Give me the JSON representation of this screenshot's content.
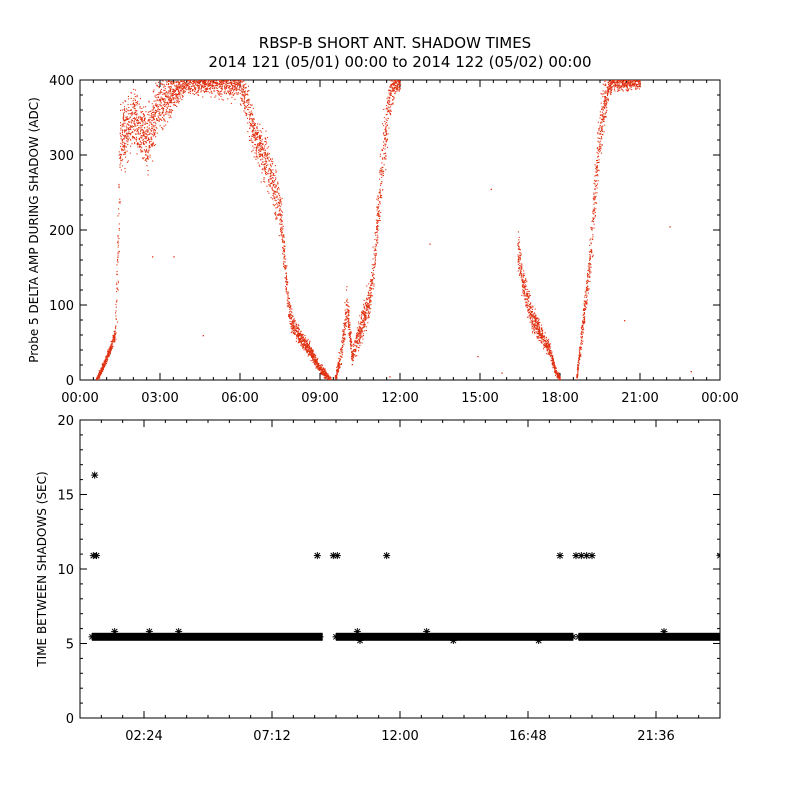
{
  "title_line1": "RBSP-B SHORT ANT. SHADOW TIMES",
  "title_line2": "2014 121 (05/01) 00:00 to 2014 122 (05/02) 00:00",
  "colors": {
    "top_series": "#e03010",
    "bottom_series": "#000000"
  },
  "chart_data": [
    {
      "type": "scatter",
      "ylabel": "Probe 5 DELTA AMP DURING SHADOW (ADC)",
      "xlabel": "",
      "xlim": [
        0,
        24
      ],
      "ylim": [
        0,
        400
      ],
      "x_unit": "hours",
      "x_ticks": [
        0,
        3,
        6,
        9,
        12,
        15,
        18,
        21,
        24
      ],
      "x_tick_labels": [
        "00:00",
        "03:00",
        "06:00",
        "09:00",
        "12:00",
        "15:00",
        "18:00",
        "21:00",
        "00:00"
      ],
      "y_ticks": [
        0,
        100,
        200,
        300,
        400
      ],
      "y_tick_labels": [
        "0",
        "100",
        "200",
        "300",
        "400"
      ],
      "grid": false,
      "band_series": {
        "x": [
          0.6,
          1.0,
          1.3,
          1.4,
          1.5,
          2.0,
          2.5,
          3.0,
          4.0,
          5.0,
          6.0,
          6.3,
          6.6,
          7.0,
          7.5,
          7.8,
          7.9,
          8.2,
          8.6,
          9.0,
          9.4
        ],
        "y": [
          0,
          30,
          60,
          150,
          320,
          350,
          320,
          370,
          400,
          400,
          400,
          360,
          320,
          290,
          230,
          100,
          80,
          60,
          40,
          15,
          0
        ],
        "spread": [
          3,
          5,
          8,
          60,
          40,
          30,
          35,
          30,
          15,
          15,
          20,
          25,
          25,
          25,
          30,
          15,
          12,
          8,
          8,
          6,
          3
        ]
      },
      "band_series_2": {
        "x": [
          9.55,
          9.8,
          10.0,
          10.2,
          10.5,
          10.8,
          11.0,
          11.3,
          11.6,
          11.8,
          12.0
        ],
        "y": [
          0,
          40,
          100,
          30,
          70,
          100,
          150,
          280,
          380,
          400,
          400
        ],
        "spread": [
          5,
          12,
          20,
          10,
          15,
          20,
          25,
          40,
          25,
          15,
          10
        ]
      },
      "band_series_3": {
        "x": [
          16.4,
          16.6,
          16.8,
          17.0,
          17.3,
          17.6,
          17.8,
          18.0
        ],
        "y": [
          180,
          130,
          100,
          80,
          60,
          40,
          15,
          0
        ],
        "spread": [
          25,
          20,
          15,
          12,
          10,
          8,
          6,
          3
        ]
      },
      "band_series_4": {
        "x": [
          18.6,
          18.8,
          19.0,
          19.2,
          19.4,
          19.6,
          19.8,
          20.0,
          20.5,
          21.0
        ],
        "y": [
          0,
          60,
          120,
          200,
          300,
          360,
          390,
          400,
          400,
          400
        ],
        "spread": [
          5,
          15,
          20,
          30,
          35,
          25,
          15,
          10,
          10,
          10
        ]
      },
      "outliers": [
        {
          "x": 2.7,
          "y": 165
        },
        {
          "x": 3.5,
          "y": 165
        },
        {
          "x": 4.6,
          "y": 60
        },
        {
          "x": 13.1,
          "y": 182
        },
        {
          "x": 14.9,
          "y": 32
        },
        {
          "x": 15.4,
          "y": 255
        },
        {
          "x": 20.4,
          "y": 80
        },
        {
          "x": 22.1,
          "y": 205
        },
        {
          "x": 22.9,
          "y": 12
        },
        {
          "x": 15.8,
          "y": 10
        },
        {
          "x": 11.6,
          "y": 5
        }
      ]
    },
    {
      "type": "scatter",
      "ylabel": "TIME BETWEEN SHADOWS (SEC)",
      "xlabel": "",
      "xlim": [
        0,
        24
      ],
      "ylim": [
        0,
        20
      ],
      "x_unit": "hours",
      "x_ticks": [
        2.4,
        7.2,
        12.0,
        16.8,
        21.6
      ],
      "x_tick_labels": [
        "02:24",
        "07:12",
        "12:00",
        "16:48",
        "21:36"
      ],
      "y_ticks": [
        0,
        5,
        10,
        15,
        20
      ],
      "y_tick_labels": [
        "0",
        "5",
        "10",
        "15",
        "20"
      ],
      "grid": false,
      "baseline": {
        "y": 5.45,
        "segments": [
          [
            0.45,
            9.1
          ],
          [
            9.6,
            18.5
          ],
          [
            18.7,
            24.0
          ]
        ]
      },
      "points": [
        {
          "x": 0.55,
          "y": 16.3
        },
        {
          "x": 0.5,
          "y": 10.9
        },
        {
          "x": 0.62,
          "y": 10.9
        },
        {
          "x": 8.9,
          "y": 10.9
        },
        {
          "x": 9.5,
          "y": 10.9
        },
        {
          "x": 9.65,
          "y": 10.9
        },
        {
          "x": 11.5,
          "y": 10.9
        },
        {
          "x": 18.0,
          "y": 10.9
        },
        {
          "x": 18.6,
          "y": 10.9
        },
        {
          "x": 18.8,
          "y": 10.9
        },
        {
          "x": 19.0,
          "y": 10.9
        },
        {
          "x": 19.2,
          "y": 10.9
        },
        {
          "x": 24.0,
          "y": 10.9
        },
        {
          "x": 1.3,
          "y": 5.8
        },
        {
          "x": 2.6,
          "y": 5.8
        },
        {
          "x": 3.7,
          "y": 5.8
        },
        {
          "x": 10.4,
          "y": 5.8
        },
        {
          "x": 13.0,
          "y": 5.8
        },
        {
          "x": 21.9,
          "y": 5.8
        },
        {
          "x": 10.5,
          "y": 5.2
        },
        {
          "x": 14.0,
          "y": 5.2
        },
        {
          "x": 17.2,
          "y": 5.2
        }
      ]
    }
  ]
}
